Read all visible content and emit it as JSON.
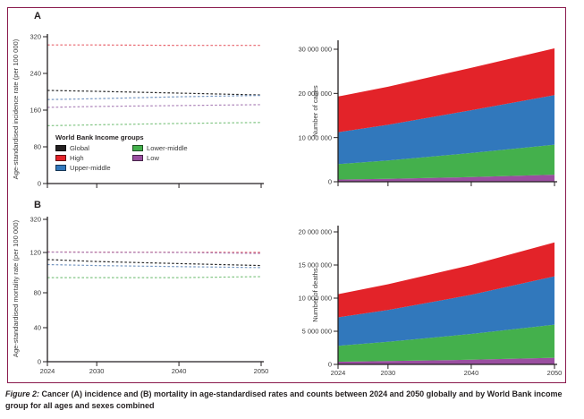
{
  "figure": {
    "caption_label": "Figure 2:",
    "caption_text": "Cancer (A) incidence and (B) mortality in age-standardised rates and counts between 2024 and 2050 globally and by World Bank income group for all ages and sexes combined",
    "border_color": "#8a1b4d"
  },
  "panels": {
    "a_label": "A",
    "b_label": "B"
  },
  "legend": {
    "title": "World Bank Income groups",
    "items": [
      {
        "label": "Global",
        "color": "#231f20"
      },
      {
        "label": "High",
        "color": "#e32329"
      },
      {
        "label": "Upper-middle",
        "color": "#3178bc"
      },
      {
        "label": "Lower-middle",
        "color": "#44b04c"
      },
      {
        "label": "Low",
        "color": "#9a4fa0"
      }
    ]
  },
  "chart_data": [
    {
      "id": "incidence_rate",
      "panel": "A",
      "type": "line",
      "line_style": "dashed",
      "ylabel": "Age-standardised incidence rate (per 100 000)",
      "x": [
        2024,
        2030,
        2040,
        2050
      ],
      "xticks": [
        2024,
        2030,
        2040,
        2050
      ],
      "yticks": [
        0,
        80,
        160,
        240,
        320
      ],
      "ylim": [
        0,
        320
      ],
      "series": [
        {
          "name": "Global",
          "color": "#2b2b2b",
          "values": [
            203,
            201,
            197,
            193
          ]
        },
        {
          "name": "High",
          "color": "#e8636c",
          "values": [
            302,
            302,
            301,
            301
          ]
        },
        {
          "name": "Upper-middle",
          "color": "#7596c1",
          "values": [
            183,
            185,
            189,
            192
          ]
        },
        {
          "name": "Lower-middle",
          "color": "#82c584",
          "values": [
            126,
            128,
            131,
            133
          ]
        },
        {
          "name": "Low",
          "color": "#ad85ba",
          "values": [
            166,
            168,
            170,
            172
          ]
        }
      ]
    },
    {
      "id": "number_of_cases",
      "type": "area",
      "stacked": true,
      "ylabel": "Number of cases",
      "x": [
        2024,
        2030,
        2040,
        2050
      ],
      "xticks": [
        2024,
        2030,
        2040,
        2050
      ],
      "yticks": [
        0,
        10000000,
        20000000,
        30000000
      ],
      "ylim": [
        0,
        31500000
      ],
      "series": [
        {
          "name": "Low",
          "color": "#9a4fa0",
          "values": [
            500000,
            650000,
            1050000,
            1600000
          ]
        },
        {
          "name": "Lower-middle",
          "color": "#44b04c",
          "values": [
            3500000,
            4150000,
            5450000,
            6800000
          ]
        },
        {
          "name": "Upper-middle",
          "color": "#3178bc",
          "values": [
            7200000,
            8100000,
            9700000,
            11200000
          ]
        },
        {
          "name": "High",
          "color": "#e32329",
          "values": [
            8100000,
            8600000,
            9600000,
            10600000
          ]
        }
      ]
    },
    {
      "id": "mortality_rate",
      "panel": "B",
      "type": "line",
      "line_style": "dashed",
      "ylabel": "Age-standardised mortality rate (per 100 000)",
      "axis_break_above": 120,
      "x": [
        2024,
        2030,
        2040,
        2050
      ],
      "xticks": [
        2024,
        2030,
        2040,
        2050
      ],
      "yticks": [
        0,
        40,
        80,
        120,
        320
      ],
      "ylim": [
        0,
        320
      ],
      "series": [
        {
          "name": "Global",
          "color": "#2b2b2b",
          "values": [
            113,
            111,
            109,
            107
          ]
        },
        {
          "name": "High",
          "color": "#df535e",
          "values": [
            123,
            122,
            121,
            120
          ]
        },
        {
          "name": "Upper-middle",
          "color": "#7596c1",
          "values": [
            108,
            107,
            106,
            105
          ]
        },
        {
          "name": "Lower-middle",
          "color": "#82c584",
          "values": [
            95,
            95,
            95,
            96
          ]
        },
        {
          "name": "Low",
          "color": "#ad85ba",
          "values": [
            122,
            121,
            120,
            119
          ]
        }
      ]
    },
    {
      "id": "number_of_deaths",
      "type": "area",
      "stacked": true,
      "ylabel": "Number of deaths",
      "x": [
        2024,
        2030,
        2040,
        2050
      ],
      "xticks": [
        2024,
        2030,
        2040,
        2050
      ],
      "yticks": [
        0,
        5000000,
        10000000,
        15000000,
        20000000
      ],
      "ylim": [
        0,
        21000000
      ],
      "series": [
        {
          "name": "Low",
          "color": "#9a4fa0",
          "values": [
            400000,
            500000,
            700000,
            1000000
          ]
        },
        {
          "name": "Lower-middle",
          "color": "#44b04c",
          "values": [
            2400000,
            2900000,
            3900000,
            5000000
          ]
        },
        {
          "name": "Upper-middle",
          "color": "#3178bc",
          "values": [
            4300000,
            4800000,
            5900000,
            7300000
          ]
        },
        {
          "name": "High",
          "color": "#e32329",
          "values": [
            3500000,
            3900000,
            4500000,
            5100000
          ]
        }
      ]
    }
  ]
}
